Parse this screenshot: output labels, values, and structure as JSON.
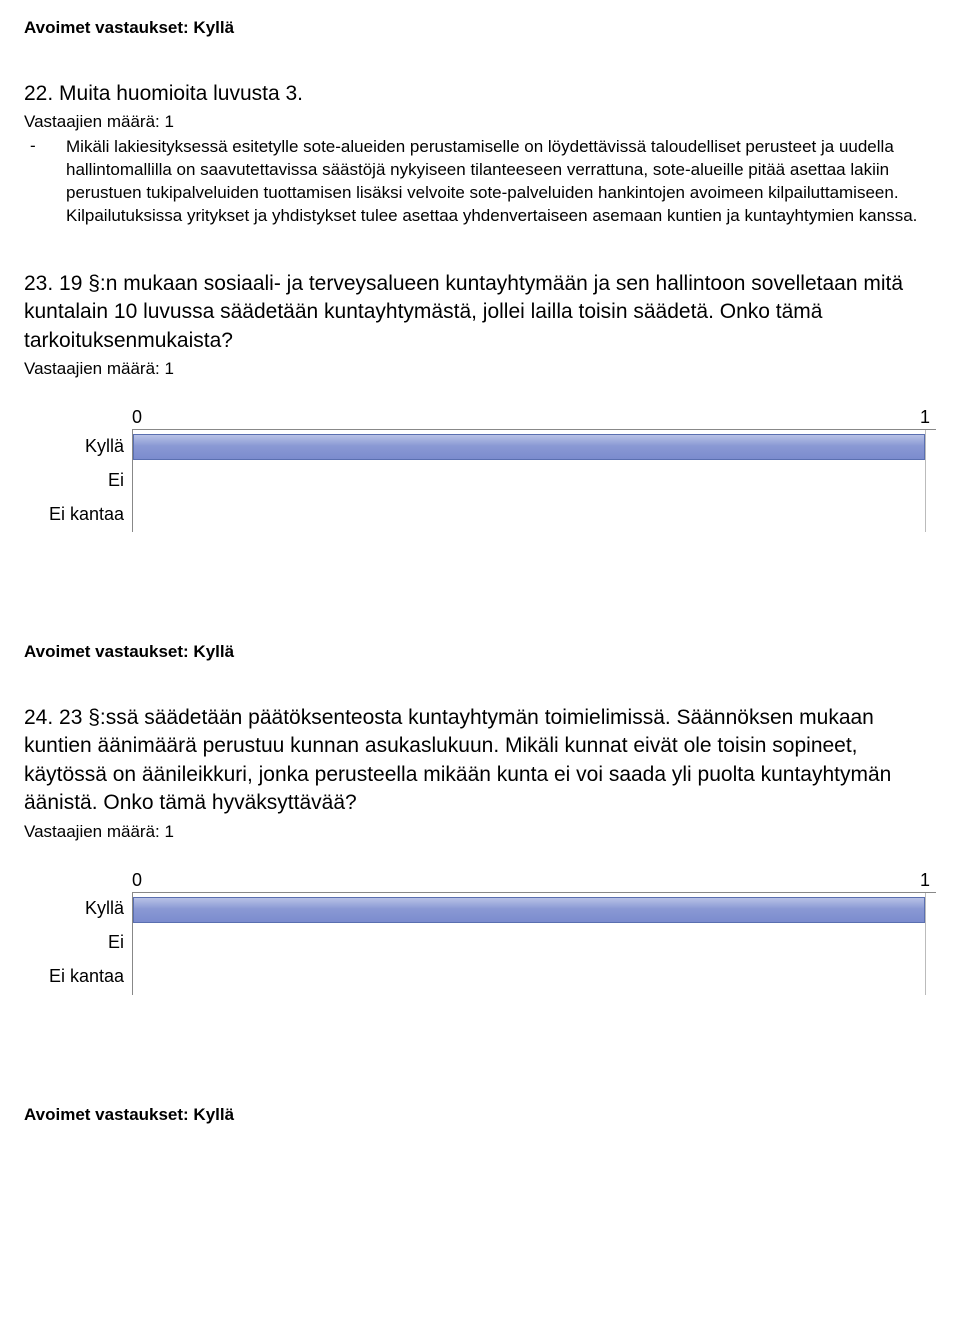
{
  "header": {
    "open_answers": "Avoimet vastaukset: Kyllä"
  },
  "q22": {
    "title": "22. Muita huomioita luvusta 3.",
    "respondents": "Vastaajien määrä: 1",
    "dash": "-",
    "bullet": "Mikäli lakiesityksessä esitetylle sote-alueiden perustamiselle on löydettävissä taloudelliset perusteet ja uudella hallintomallilla on saavutettavissa säästöjä nykyiseen tilanteeseen verrattuna, sote-alueille pitää asettaa lakiin perustuen tukipalveluiden tuottamisen lisäksi velvoite sote-palveluiden hankintojen avoimeen kilpailuttamiseen. Kilpailutuksissa yritykset ja yhdistykset tulee asettaa yhdenvertaiseen asemaan kuntien ja kuntayhtymien kanssa."
  },
  "q23": {
    "title": "23. 19 §:n mukaan sosiaali- ja terveysalueen kuntayhtymään ja sen hallintoon sovelletaan mitä kuntalain 10 luvussa säädetään kuntayhtymästä, jollei lailla toisin säädetä. Onko tämä tarkoituksenmukaista?",
    "respondents": "Vastaajien määrä: 1",
    "chart": {
      "type": "bar",
      "x_ticks": [
        "0",
        "1"
      ],
      "categories": [
        "Kyllä",
        "Ei",
        "Ei kantaa"
      ],
      "values": [
        1,
        0,
        0
      ],
      "max": 1,
      "bar_fill_top": "#b8c2e6",
      "bar_fill_bottom": "#7b8cce",
      "bar_border": "#5a6fb0",
      "axis_color": "#888888",
      "grid_color": "#bbbbbb"
    }
  },
  "mid": {
    "open_answers": "Avoimet vastaukset: Kyllä"
  },
  "q24": {
    "title": "24. 23 §:ssä säädetään päätöksenteosta kuntayhtymän toimielimissä. Säännöksen mukaan kuntien äänimäärä perustuu kunnan asukaslukuun. Mikäli kunnat eivät ole toisin sopineet, käytössä on äänileikkuri, jonka perusteella mikään kunta ei voi saada yli puolta kuntayhtymän äänistä. Onko tämä hyväksyttävää?",
    "respondents": "Vastaajien määrä: 1",
    "chart": {
      "type": "bar",
      "x_ticks": [
        "0",
        "1"
      ],
      "categories": [
        "Kyllä",
        "Ei",
        "Ei kantaa"
      ],
      "values": [
        1,
        0,
        0
      ],
      "max": 1,
      "bar_fill_top": "#b8c2e6",
      "bar_fill_bottom": "#7b8cce",
      "bar_border": "#5a6fb0",
      "axis_color": "#888888",
      "grid_color": "#bbbbbb"
    }
  },
  "footer": {
    "open_answers": "Avoimet vastaukset: Kyllä"
  }
}
